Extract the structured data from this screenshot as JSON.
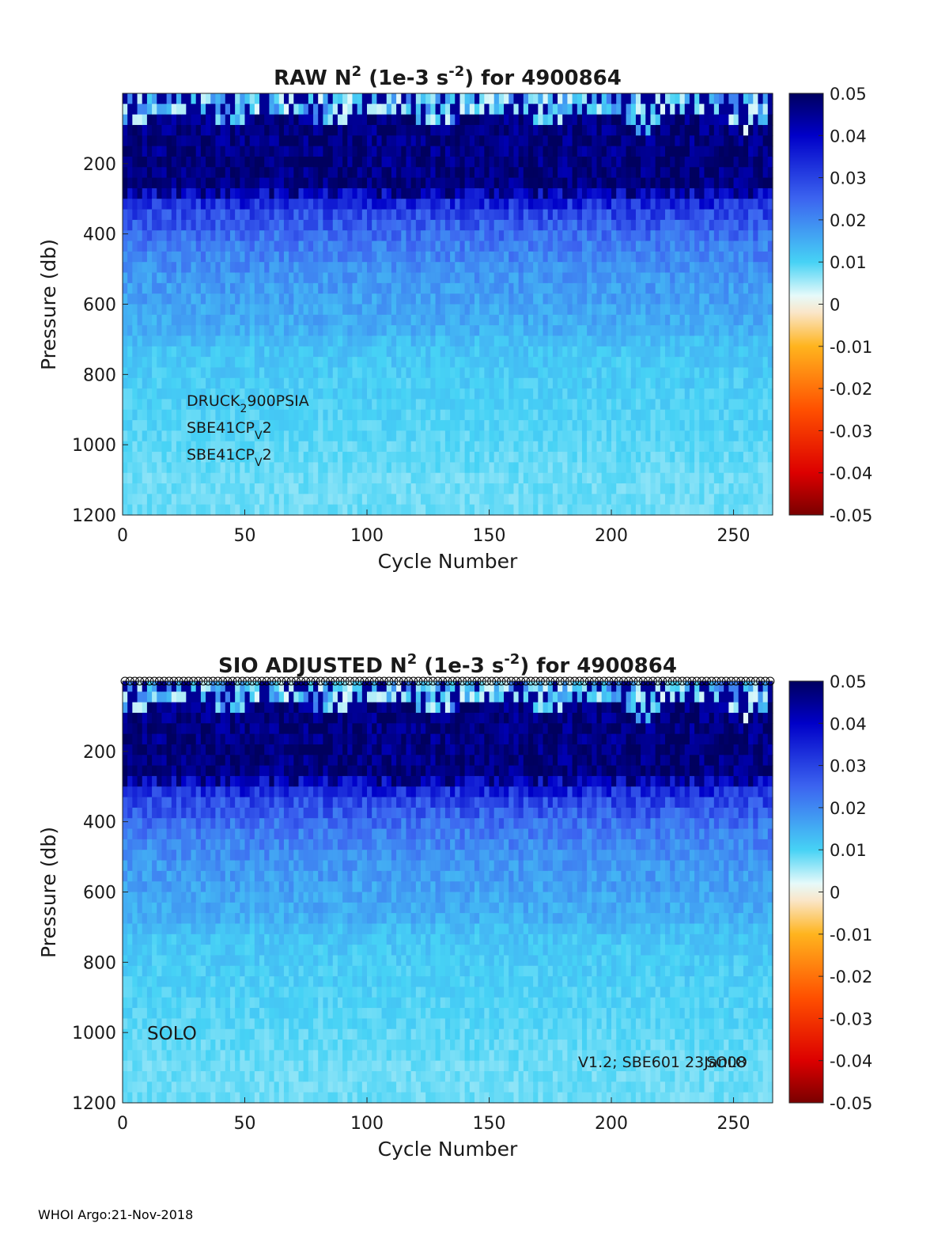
{
  "footer": "WHOI Argo:21-Nov-2018",
  "chart_data": [
    {
      "type": "heatmap",
      "title_parts": {
        "prefix": "RAW N",
        "sup1": "2",
        "mid": " (1e-3 s",
        "sup2": "-2",
        "suffix": ") for 4900864"
      },
      "xlabel": "Cycle Number",
      "ylabel": "Pressure (db)",
      "xlim": [
        0,
        266
      ],
      "ylim": [
        0,
        1200
      ],
      "y_reversed": true,
      "xticks": [
        0,
        50,
        100,
        150,
        200,
        250
      ],
      "yticks": [
        200,
        400,
        600,
        800,
        1000,
        1200
      ],
      "colorbar": {
        "range": [
          -0.05,
          0.05
        ],
        "colormap": "jet-like diverging",
        "ticks": [
          "0.05",
          "0.04",
          "0.03",
          "0.02",
          "0.01",
          "0",
          "-0.01",
          "-0.02",
          "-0.03",
          "-0.04",
          "-0.05"
        ]
      },
      "value_profile": {
        "pressure_db": [
          20,
          60,
          100,
          150,
          200,
          260,
          290,
          330,
          380,
          420,
          470,
          520,
          570,
          620,
          670,
          720,
          800,
          900,
          1000,
          1100,
          1200
        ],
        "n2_approx": [
          0.003,
          0.045,
          0.05,
          0.05,
          0.05,
          0.05,
          0.04,
          0.03,
          0.026,
          0.022,
          0.02,
          0.018,
          0.017,
          0.016,
          0.015,
          0.012,
          0.011,
          0.01,
          0.009,
          0.008,
          0.008
        ]
      },
      "annotations": [
        {
          "base": "DRUCK",
          "sub": "2",
          "rest": "900PSIA"
        },
        {
          "base": "SBE41CP",
          "sub": "V",
          "rest": "2"
        },
        {
          "base": "SBE41CP",
          "sub": "V",
          "rest": "2"
        }
      ]
    },
    {
      "type": "heatmap",
      "title_parts": {
        "prefix": "SIO  ADJUSTED N",
        "sup1": "2",
        "mid": " (1e-3 s",
        "sup2": "-2",
        "suffix": ") for 4900864"
      },
      "xlabel": "Cycle Number",
      "ylabel": "Pressure (db)",
      "xlim": [
        0,
        266
      ],
      "ylim": [
        0,
        1200
      ],
      "y_reversed": true,
      "xticks": [
        0,
        50,
        100,
        150,
        200,
        250
      ],
      "yticks": [
        200,
        400,
        600,
        800,
        1000,
        1200
      ],
      "colorbar": {
        "range": [
          -0.05,
          0.05
        ],
        "colormap": "jet-like diverging",
        "ticks": [
          "0.05",
          "0.04",
          "0.03",
          "0.02",
          "0.01",
          "0",
          "-0.01",
          "-0.02",
          "-0.03",
          "-0.04",
          "-0.05"
        ]
      },
      "qc_markers": "open circles along top edge for every cycle",
      "annotations_text": [
        "SOLO",
        "V1.2; SBE601 23Jan08",
        "SOLO"
      ]
    }
  ]
}
